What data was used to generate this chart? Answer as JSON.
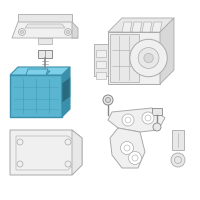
{
  "bg_color": "#ffffff",
  "border_color": "#d0d0d0",
  "highlight_color": "#5ab5d0",
  "highlight_dark": "#3a90aa",
  "highlight_light": "#7dd0e8",
  "line_color": "#aaaaaa",
  "dark_line": "#888888",
  "fill_light": "#f0f0f0",
  "fill_mid": "#e8e8e8",
  "fill_gray": "#d8d8d8"
}
